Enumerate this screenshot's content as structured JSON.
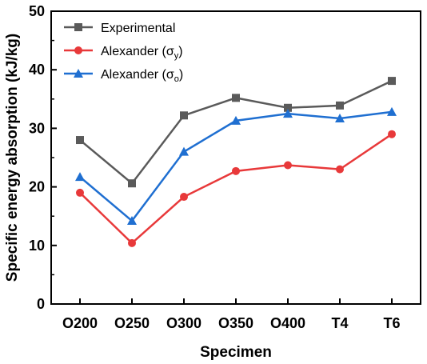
{
  "chart_data": {
    "type": "line",
    "title": "",
    "xlabel": "Specimen",
    "ylabel": "Specific energy absorption (kJ/kg)",
    "categories": [
      "O200",
      "O250",
      "O300",
      "O350",
      "O400",
      "T4",
      "T6"
    ],
    "ylim": [
      0,
      50
    ],
    "yticks": [
      0,
      10,
      20,
      30,
      40,
      50
    ],
    "grid": false,
    "legend_position": "top-left",
    "series": [
      {
        "name": "Experimental",
        "legend_main": "Experimental",
        "legend_sub": "",
        "legend_close": "",
        "color": "#5a5a5a",
        "marker": "square",
        "values": [
          28.0,
          20.6,
          32.2,
          35.2,
          33.5,
          33.9,
          38.1
        ]
      },
      {
        "name": "Alexander (σy)",
        "legend_main": "Alexander (σ",
        "legend_sub": "y",
        "legend_close": ")",
        "color": "#e8393a",
        "marker": "circle",
        "values": [
          19.0,
          10.4,
          18.3,
          22.7,
          23.7,
          23.0,
          29.0
        ]
      },
      {
        "name": "Alexander (σo)",
        "legend_main": "Alexander (σ",
        "legend_sub": "o",
        "legend_close": ")",
        "color": "#1f6fd1",
        "marker": "triangle",
        "values": [
          21.7,
          14.2,
          26.0,
          31.3,
          32.5,
          31.7,
          32.8
        ]
      }
    ]
  }
}
